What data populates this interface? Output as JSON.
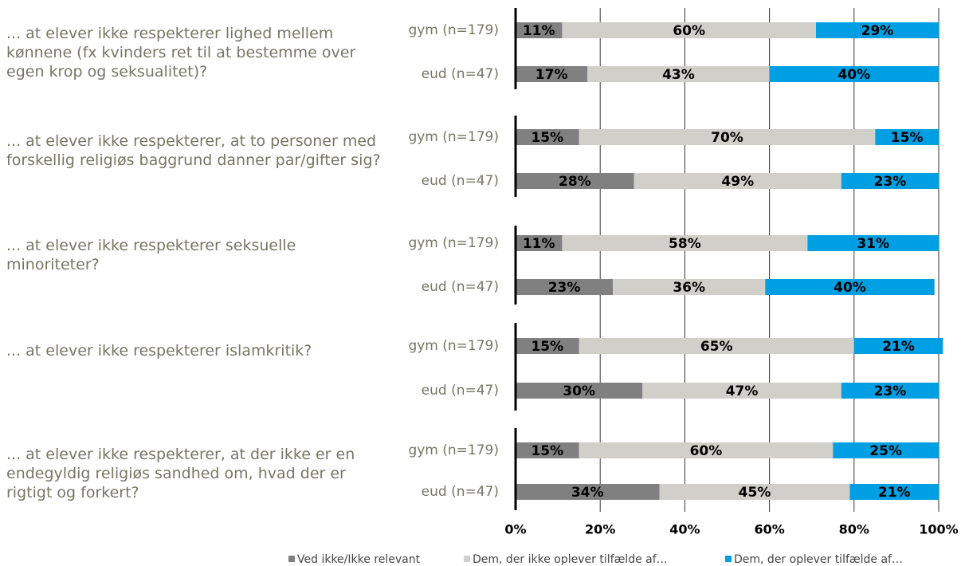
{
  "chart_data": {
    "type": "bar",
    "orientation": "horizontal",
    "stacked": true,
    "group_labels": [
      "... at elever ikke respekterer lighed mellem kønnene (fx kvinders ret til at bestemme over egen krop og seksualitet)?",
      "... at elever ikke respekterer, at to personer med forskellig religiøs baggrund danner par/gifter sig?",
      "... at elever ikke respekterer seksuelle minoriteter?",
      "... at elever ikke respekterer islamkritik?",
      "... at elever ikke respekterer, at der ikke er en endegyldig religiøs sandhed om, hvad der er rigtigt og forkert?"
    ],
    "categories": [
      "gym (n=179)",
      "eud (n=47)",
      "gym (n=179)",
      "eud (n=47)",
      "gym (n=179)",
      "eud (n=47)",
      "gym (n=179)",
      "eud (n=47)",
      "gym (n=179)",
      "eud (n=47)"
    ],
    "series": [
      {
        "name": "Ved ikke/Ikke relevant",
        "color": "#808080",
        "values": [
          11,
          17,
          15,
          28,
          11,
          23,
          15,
          30,
          15,
          34
        ],
        "value_labels": [
          "11%",
          "17%",
          "15%",
          "28%",
          "11%",
          "23%",
          "15%",
          "30%",
          "15%",
          "34%"
        ]
      },
      {
        "name": "Dem, der ikke oplever tilfælde  af…",
        "color": "#d0cfca",
        "values": [
          60,
          43,
          70,
          49,
          58,
          36,
          65,
          47,
          60,
          45
        ],
        "value_labels": [
          "60%",
          "43%",
          "70%",
          "49%",
          "58%",
          "36%",
          "65%",
          "47%",
          "60%",
          "45%"
        ]
      },
      {
        "name": "Dem, der oplever tilfælde  af…",
        "color": "#009fe3",
        "values": [
          29,
          40,
          15,
          23,
          31,
          40,
          21,
          23,
          25,
          21
        ],
        "value_labels": [
          "29%",
          "40%",
          "15%",
          "23%",
          "31%",
          "40%",
          "21%",
          "23%",
          "25%",
          "21%"
        ]
      }
    ],
    "xlim": [
      0,
      100
    ],
    "xticks": [
      {
        "value": 0,
        "label": "0%"
      },
      {
        "value": 20,
        "label": "20%"
      },
      {
        "value": 40,
        "label": "40%"
      },
      {
        "value": 60,
        "label": "60%"
      },
      {
        "value": 80,
        "label": "80%"
      },
      {
        "value": 100,
        "label": "100%"
      }
    ],
    "grid": true,
    "legend": "bottom"
  }
}
